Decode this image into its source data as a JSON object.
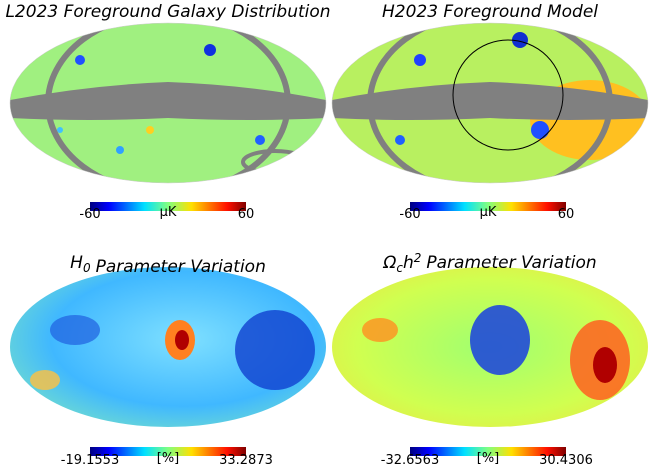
{
  "panels": [
    {
      "title": {
        "text": "L2023 Foreground Galaxy Distribution"
      },
      "colorbar": {
        "min": -60,
        "max": 60,
        "unit": "μK"
      }
    },
    {
      "title": {
        "text": "H2023 Foreground Model"
      },
      "colorbar": {
        "min": -60,
        "max": 60,
        "unit": "μK"
      }
    },
    {
      "title": {
        "symbol": "H",
        "sub": "0",
        "text": "Parameter Variation"
      },
      "colorbar": {
        "min": -19.1553,
        "max": 33.2873,
        "unit": "[%]"
      }
    },
    {
      "title": {
        "symbol": "Ω",
        "sub": "c",
        "sym2": "h",
        "sup": "2",
        "text": "Parameter Variation"
      },
      "colorbar": {
        "min": -32.6563,
        "max": 30.4306,
        "unit": "[%]"
      }
    }
  ]
}
